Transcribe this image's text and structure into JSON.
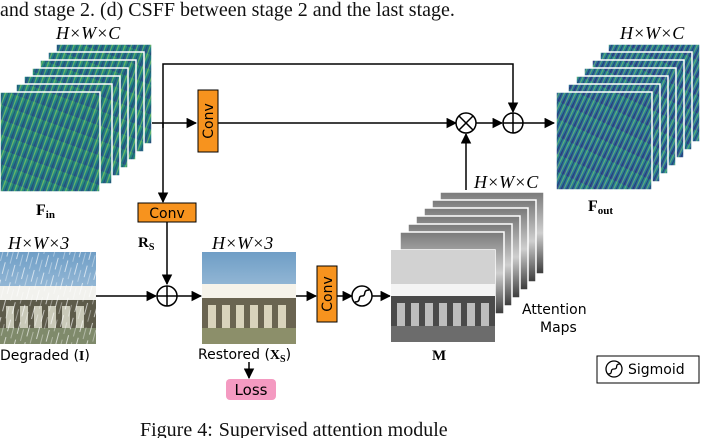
{
  "header_text": "and stage 2. (d) CSFF between stage 2 and the last stage.",
  "caption": {
    "label": "Figure 4:",
    "text": "Supervised attention module"
  },
  "blocks": {
    "conv_top": "Conv",
    "conv_mid": "Conv",
    "conv_right": "Conv",
    "loss": "Loss"
  },
  "labels": {
    "f_in": "F",
    "f_in_sub": "in",
    "f_out": "F",
    "f_out_sub": "out",
    "dim_in": "H×W×C",
    "dim_out": "H×W×C",
    "dim_attention": "H×W×C",
    "dim_degraded": "H×W×3",
    "dim_restored": "H×W×3",
    "r_s": "R",
    "r_s_sub": "S",
    "degraded": "Degraded (",
    "degraded_sym": "I",
    "degraded_close": ")",
    "restored": "Restored (",
    "restored_sym": "X",
    "restored_sub": "S",
    "restored_close": ")",
    "m": "M",
    "attention_line1": "Attention",
    "attention_line2": "Maps"
  },
  "legend": {
    "sigmoid": "Sigmoid"
  },
  "colors": {
    "conv_fill": "#f7931e",
    "loss_fill": "#f49ac1",
    "feature_teal": "#2a8c8a",
    "feature_blue": "#3b4fa0",
    "arrow": "#000000"
  }
}
